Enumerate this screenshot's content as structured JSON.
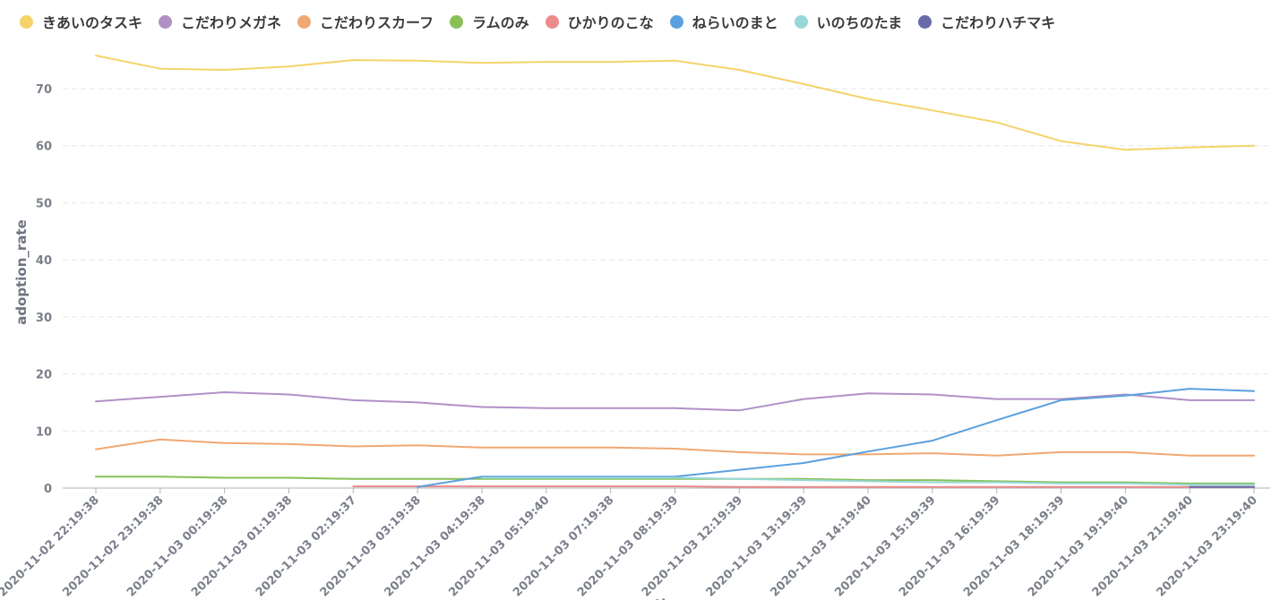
{
  "chart_data": {
    "type": "line",
    "xlabel": "time",
    "ylabel": "adoption_rate",
    "ylim": [
      0,
      77
    ],
    "yticks": [
      0,
      10,
      20,
      30,
      40,
      50,
      60,
      70
    ],
    "grid": "horizontal-dashed",
    "legend_position": "top-left",
    "categories": [
      "2020-11-02 22:19:38",
      "2020-11-02 23:19:38",
      "2020-11-03 00:19:38",
      "2020-11-03 01:19:38",
      "2020-11-03 02:19:37",
      "2020-11-03 03:19:38",
      "2020-11-03 04:19:38",
      "2020-11-03 05:19:40",
      "2020-11-03 07:19:38",
      "2020-11-03 08:19:39",
      "2020-11-03 12:19:39",
      "2020-11-03 13:19:39",
      "2020-11-03 14:19:40",
      "2020-11-03 15:19:39",
      "2020-11-03 16:19:39",
      "2020-11-03 18:19:39",
      "2020-11-03 19:19:40",
      "2020-11-03 21:19:40",
      "2020-11-03 23:19:40"
    ],
    "series": [
      {
        "name": "きあいのタスキ",
        "color": "#f5d36b",
        "values": [
          75.8,
          73.5,
          73.3,
          73.9,
          75.0,
          74.9,
          74.5,
          74.7,
          74.7,
          74.9,
          73.3,
          70.8,
          68.2,
          66.2,
          64.1,
          60.8,
          59.3,
          59.7,
          60.0
        ]
      },
      {
        "name": "こだわりメガネ",
        "color": "#b190c6",
        "values": [
          15.2,
          16.0,
          16.8,
          16.4,
          15.4,
          15.0,
          14.2,
          14.0,
          14.0,
          14.0,
          13.6,
          15.6,
          16.6,
          16.4,
          15.6,
          15.6,
          16.4,
          15.4,
          15.4
        ]
      },
      {
        "name": "こだわりスカーフ",
        "color": "#f0a873",
        "values": [
          6.8,
          8.5,
          7.9,
          7.7,
          7.3,
          7.5,
          7.1,
          7.1,
          7.1,
          6.9,
          6.3,
          5.9,
          5.9,
          6.1,
          5.7,
          6.3,
          6.3,
          5.7,
          5.7
        ]
      },
      {
        "name": "ラムのみ",
        "color": "#88c057",
        "values": [
          2.0,
          2.0,
          1.8,
          1.8,
          1.6,
          1.6,
          1.6,
          1.6,
          1.6,
          1.6,
          1.6,
          1.6,
          1.4,
          1.4,
          1.2,
          1.0,
          1.0,
          0.8,
          0.8
        ]
      },
      {
        "name": "ひかりのこな",
        "color": "#ec8a8a",
        "values": [
          null,
          null,
          null,
          null,
          0.3,
          0.3,
          0.3,
          0.3,
          0.3,
          0.3,
          0.2,
          0.2,
          0.2,
          0.2,
          0.2,
          0.2,
          0.2,
          0.2,
          0.2
        ]
      },
      {
        "name": "ねらいのまと",
        "color": "#5aa0de",
        "values": [
          null,
          null,
          null,
          null,
          null,
          0.2,
          2.0,
          2.0,
          2.0,
          2.0,
          3.2,
          4.4,
          6.4,
          8.3,
          11.9,
          15.4,
          16.2,
          17.4,
          17.0
        ]
      },
      {
        "name": "いのちのたま",
        "color": "#98d8d8",
        "values": [
          null,
          null,
          null,
          null,
          null,
          null,
          1.8,
          1.8,
          1.8,
          1.8,
          1.6,
          1.4,
          1.2,
          1.0,
          1.0,
          0.8,
          0.8,
          0.6,
          0.6
        ]
      },
      {
        "name": "こだわりハチマキ",
        "color": "#6b6aa8",
        "values": [
          null,
          null,
          null,
          null,
          null,
          null,
          null,
          null,
          null,
          null,
          null,
          null,
          null,
          null,
          null,
          null,
          null,
          0.2,
          0.2
        ]
      }
    ]
  }
}
